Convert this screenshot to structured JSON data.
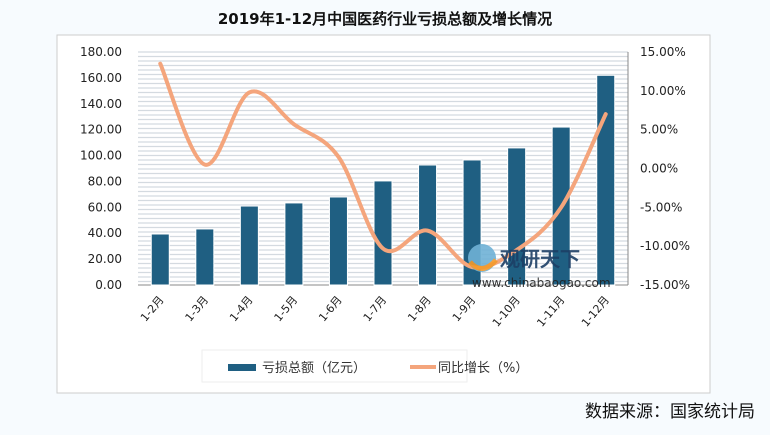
{
  "chart_data": {
    "type": "bar",
    "title": "2019年1-12月中国医药行业亏损总额及增长情况",
    "categories": [
      "1-2月",
      "1-3月",
      "1-4月",
      "1-5月",
      "1-6月",
      "1-7月",
      "1-8月",
      "1-9月",
      "1-10月",
      "1-11月",
      "1-12月"
    ],
    "series": [
      {
        "name": "亏损总额（亿元）",
        "type": "bar",
        "axis": "left",
        "color": "#1f5f82",
        "values": [
          39.4,
          43.3,
          61.0,
          63.4,
          68.0,
          80.4,
          92.7,
          96.6,
          105.9,
          122.0,
          162.0
        ]
      },
      {
        "name": "同比增长（%）",
        "type": "line",
        "axis": "right",
        "color": "#f4a57c",
        "values": [
          13.5,
          0.5,
          9.8,
          5.7,
          1.5,
          -10.3,
          -8.0,
          -12.7,
          -10.5,
          -5.0,
          7.0
        ]
      }
    ],
    "ylim": [
      0,
      180
    ],
    "yticks": [
      "0.00",
      "20.00",
      "40.00",
      "60.00",
      "80.00",
      "100.00",
      "120.00",
      "140.00",
      "160.00",
      "180.00"
    ],
    "y2lim": [
      -15,
      15
    ],
    "y2ticks": [
      "-15.00%",
      "-10.00%",
      "-5.00%",
      "0.00%",
      "5.00%",
      "10.00%",
      "15.00%"
    ],
    "grid": true,
    "legend": "bottom",
    "watermark": "观研天下 www.chinabaogao.com",
    "source": "数据来源：国家统计局"
  }
}
